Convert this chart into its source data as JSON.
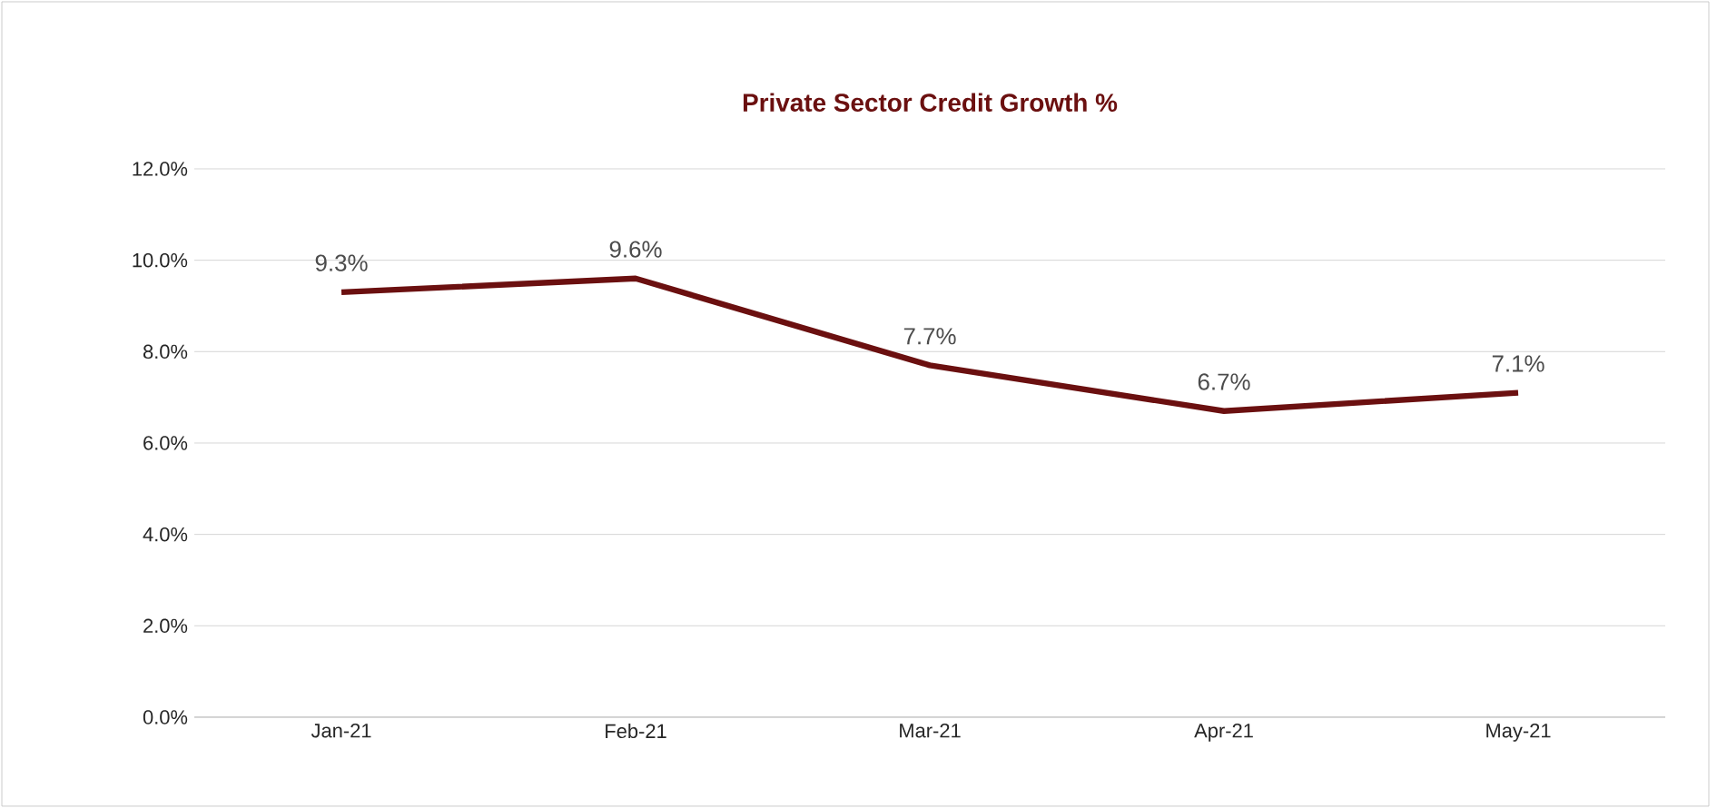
{
  "chart_data": {
    "type": "line",
    "title": "Private Sector Credit Growth %",
    "categories": [
      "Jan-21",
      "Feb-21",
      "Mar-21",
      "Apr-21",
      "May-21"
    ],
    "series": [
      {
        "color": "#6b1010",
        "values": [
          9.3,
          9.6,
          7.7,
          6.7,
          7.1
        ],
        "value_labels": [
          "9.3%",
          "9.6%",
          "7.7%",
          "6.7%",
          "7.1%"
        ]
      }
    ],
    "ylim": [
      0,
      12
    ],
    "yticks": [
      {
        "value": 0,
        "label": "0.0%"
      },
      {
        "value": 2,
        "label": "2.0%"
      },
      {
        "value": 4,
        "label": "4.0%"
      },
      {
        "value": 6,
        "label": "6.0%"
      },
      {
        "value": 8,
        "label": "8.0%"
      },
      {
        "value": 10,
        "label": "10.0%"
      },
      {
        "value": 12,
        "label": "12.0%"
      }
    ],
    "grid": "y",
    "line_style": "solid"
  }
}
